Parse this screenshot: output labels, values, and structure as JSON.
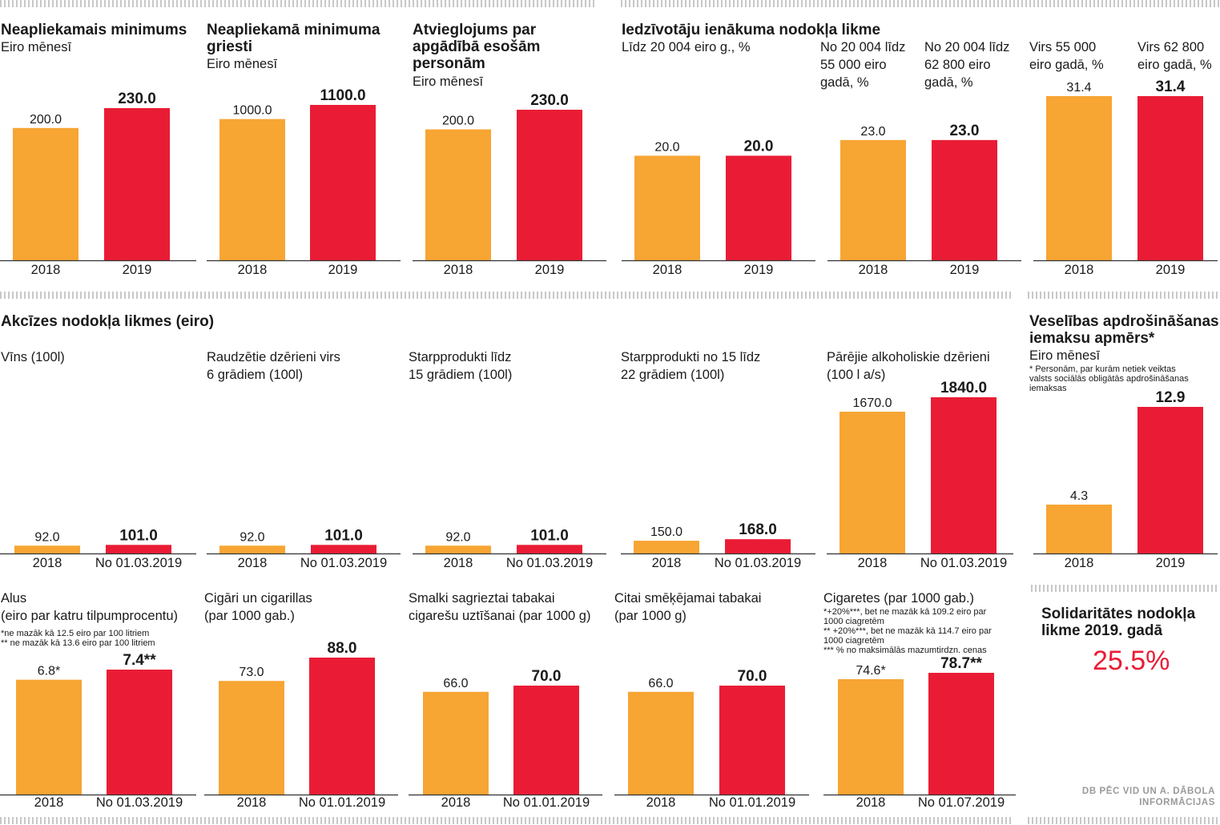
{
  "colors": {
    "y2018": "#f7a533",
    "y2019": "#ea1c35",
    "axis": "#333333",
    "separator": "#c8c8c8"
  },
  "panels": {
    "p1": {
      "title": "Neapliekamais minimums",
      "subtitle": "Eiro mēnesī"
    },
    "p2": {
      "title": "Neapliekamā minimuma\ngriesti",
      "subtitle": "Eiro mēnesī"
    },
    "p3": {
      "title": "Atvieglojums par\napgādībā esošām\npersonām",
      "subtitle": "Eiro mēnesī"
    },
    "p4": {
      "title": "Iedzīvotāju ienākuma nodokļa likme",
      "sub_a": "Līdz 20 004 eiro g., %",
      "sub_b": "No 20 004 līdz\n55 000 eiro\ngadā, %",
      "sub_c": "No 20 004 līdz\n62 800 eiro\ngadā, %",
      "sub_d": "Virs 55 000\neiro gadā, %",
      "sub_e": "Virs 62 800\neiro gadā, %"
    },
    "p5": {
      "title": "Akcīzes nodokļa likmes (eiro)"
    },
    "wine": {
      "subtitle": "Vīns (100l)"
    },
    "fermented": {
      "subtitle": "Raudzētie dzērieni virs\n6 grādiem (100l)"
    },
    "inter15": {
      "subtitle": "Starpprodukti līdz\n15 grādiem (100l)"
    },
    "inter22": {
      "subtitle": "Starpprodukti no 15 līdz\n22 grādiem (100l)"
    },
    "alcohol": {
      "subtitle": "Pārējie alkoholiskie dzērieni\n(100 l a/s)"
    },
    "health": {
      "title": "Veselības apdrošināšanas\niemaksu apmērs*",
      "subtitle": "Eiro mēnesī",
      "note": "* Personām, par kurām netiek veiktas\nvalsts sociālās obligātās apdrošināšanas\niemaksas"
    },
    "beer": {
      "subtitle": "Alus\n(eiro par katru tilpumprocentu)",
      "note": "*ne mazāk kā 12.5 eiro par 100 litriem\n** ne mazāk kā 13.6 eiro par 100 litriem"
    },
    "cigars": {
      "subtitle": "Cigāri un cigarillas\n(par 1000 gab.)"
    },
    "rolling": {
      "subtitle": "Smalki sagrieztai tabakai\ncigarešu uztīšanai (par 1000 g)"
    },
    "othertob": {
      "subtitle": "Citai smēķējamai tabakai\n(par 1000 g)"
    },
    "cigarettes": {
      "subtitle": "Cigaretes (par 1000 gab.)",
      "note": "*+20%***, bet ne mazāk kā 109.2 eiro par\n1000 ciagretēm\n** +20%***, bet ne mazāk kā 114.7 eiro par\n1000 ciagretēm\n*** % no maksimālās mazumtirdzn. cenas"
    },
    "solidarity": {
      "title": "Solidaritātes nodokļa\nlikme 2019. gadā",
      "value": "25.5%"
    }
  },
  "source": "DB PĒC VID UN A. DĀBOLA\nINFORMĀCIJAS",
  "chart_data": [
    {
      "id": "c1",
      "type": "bar",
      "categories": [
        "2018",
        "2019"
      ],
      "values": [
        200.0,
        230.0
      ],
      "value_labels": [
        "200.0",
        "230.0"
      ]
    },
    {
      "id": "c2",
      "type": "bar",
      "categories": [
        "2018",
        "2019"
      ],
      "values": [
        1000.0,
        1100.0
      ],
      "value_labels": [
        "1000.0",
        "1100.0"
      ]
    },
    {
      "id": "c3",
      "type": "bar",
      "categories": [
        "2018",
        "2019"
      ],
      "values": [
        200.0,
        230.0
      ],
      "value_labels": [
        "200.0",
        "230.0"
      ]
    },
    {
      "id": "c4",
      "type": "bar",
      "categories": [
        "2018",
        "2019"
      ],
      "values": [
        20.0,
        20.0
      ],
      "value_labels": [
        "20.0",
        "20.0"
      ]
    },
    {
      "id": "c5",
      "type": "bar",
      "categories": [
        "2018",
        "2019"
      ],
      "values": [
        23.0,
        23.0
      ],
      "value_labels": [
        "23.0",
        "23.0"
      ]
    },
    {
      "id": "c6",
      "type": "bar",
      "categories": [
        "2018",
        "2019"
      ],
      "values": [
        31.4,
        31.4
      ],
      "value_labels": [
        "31.4",
        "31.4"
      ]
    },
    {
      "id": "c7",
      "type": "bar",
      "categories": [
        "2018",
        "No 01.03.2019"
      ],
      "values": [
        92.0,
        101.0
      ],
      "value_labels": [
        "92.0",
        "101.0"
      ]
    },
    {
      "id": "c8",
      "type": "bar",
      "categories": [
        "2018",
        "No 01.03.2019"
      ],
      "values": [
        92.0,
        101.0
      ],
      "value_labels": [
        "92.0",
        "101.0"
      ]
    },
    {
      "id": "c9",
      "type": "bar",
      "categories": [
        "2018",
        "No 01.03.2019"
      ],
      "values": [
        92.0,
        101.0
      ],
      "value_labels": [
        "92.0",
        "101.0"
      ]
    },
    {
      "id": "c10",
      "type": "bar",
      "categories": [
        "2018",
        "No 01.03.2019"
      ],
      "values": [
        150.0,
        168.0
      ],
      "value_labels": [
        "150.0",
        "168.0"
      ]
    },
    {
      "id": "c11",
      "type": "bar",
      "categories": [
        "2018",
        "No 01.03.2019"
      ],
      "values": [
        1670.0,
        1840.0
      ],
      "value_labels": [
        "1670.0",
        "1840.0"
      ]
    },
    {
      "id": "c12",
      "type": "bar",
      "categories": [
        "2018",
        "2019"
      ],
      "values": [
        4.3,
        12.9
      ],
      "value_labels": [
        "4.3",
        "12.9"
      ]
    },
    {
      "id": "c13",
      "type": "bar",
      "categories": [
        "2018",
        "No 01.03.2019"
      ],
      "values": [
        6.8,
        7.4
      ],
      "value_labels": [
        "6.8*",
        "7.4**"
      ]
    },
    {
      "id": "c14",
      "type": "bar",
      "categories": [
        "2018",
        "No 01.01.2019"
      ],
      "values": [
        73.0,
        88.0
      ],
      "value_labels": [
        "73.0",
        "88.0"
      ]
    },
    {
      "id": "c15",
      "type": "bar",
      "categories": [
        "2018",
        "No 01.01.2019"
      ],
      "values": [
        66.0,
        70.0
      ],
      "value_labels": [
        "66.0",
        "70.0"
      ]
    },
    {
      "id": "c16",
      "type": "bar",
      "categories": [
        "2018",
        "No 01.01.2019"
      ],
      "values": [
        66.0,
        70.0
      ],
      "value_labels": [
        "66.0",
        "70.0"
      ]
    },
    {
      "id": "c17",
      "type": "bar",
      "categories": [
        "2018",
        "No 01.07.2019"
      ],
      "values": [
        74.6,
        78.7
      ],
      "value_labels": [
        "74.6*",
        "78.7**"
      ]
    }
  ]
}
